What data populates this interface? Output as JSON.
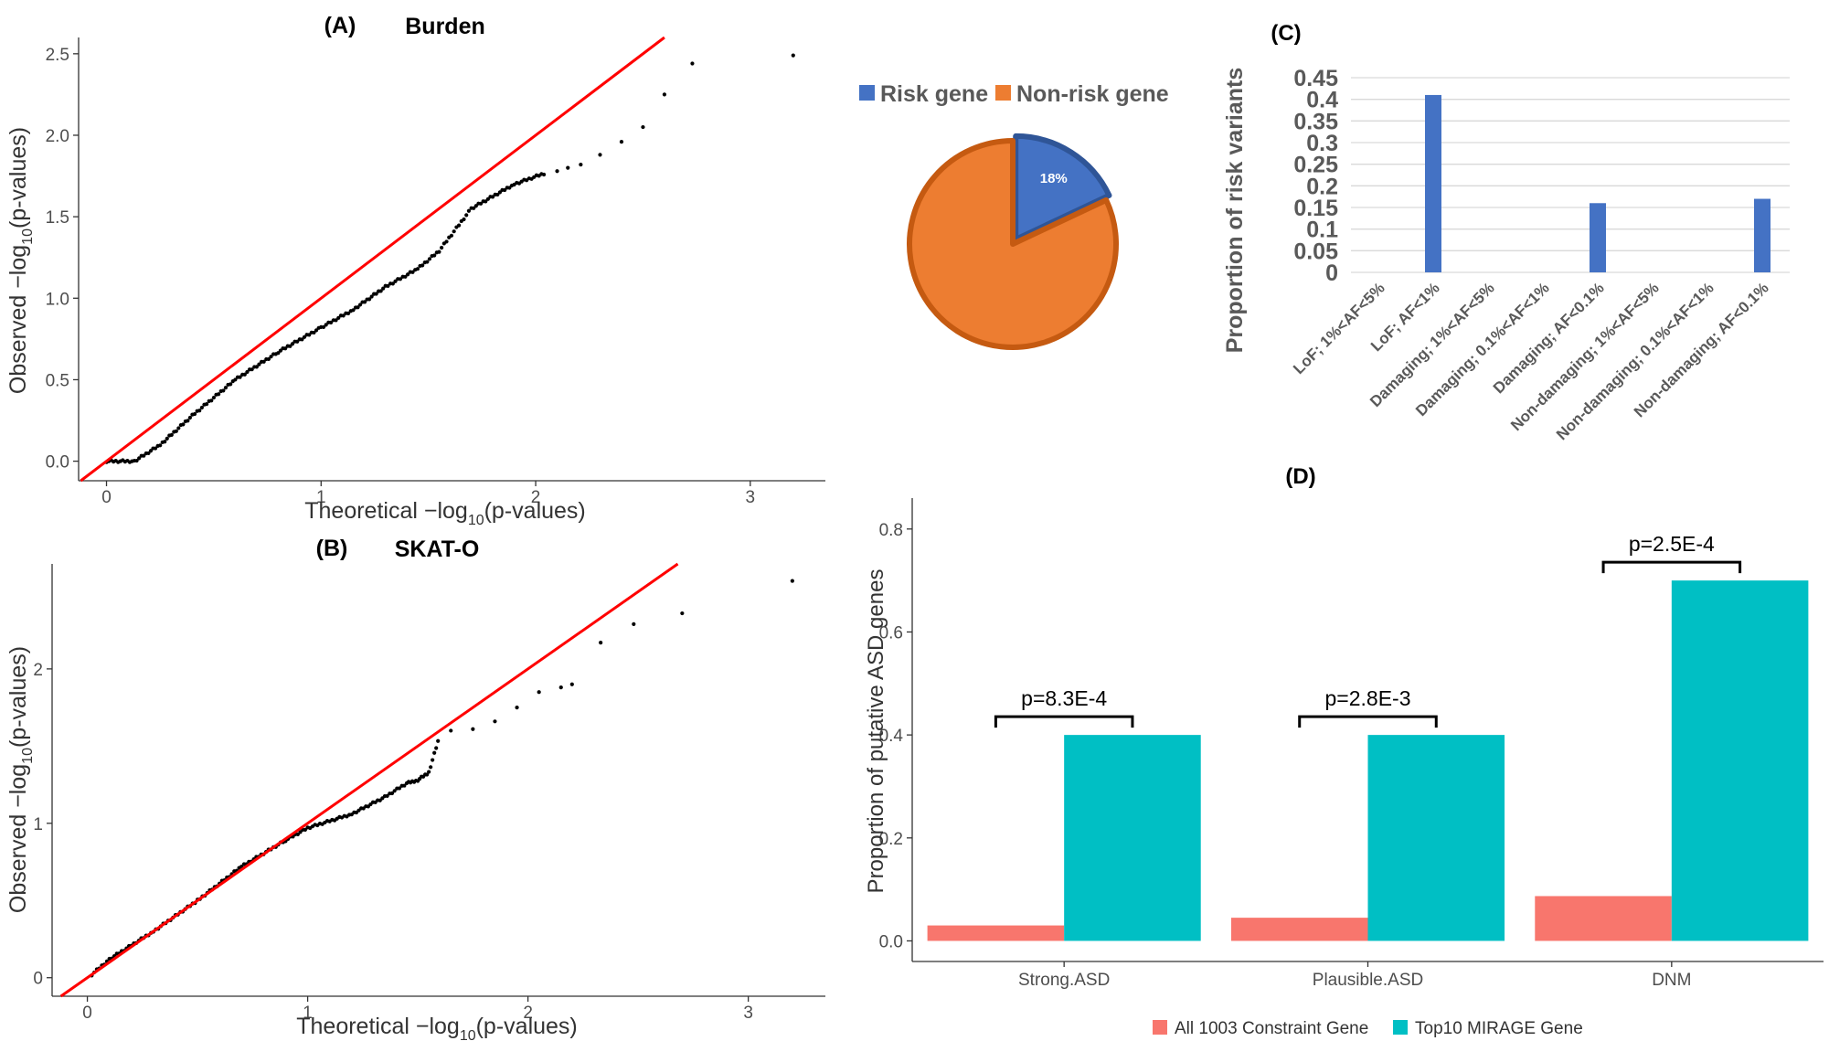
{
  "chart_data": [
    {
      "type": "scatter",
      "panel_label": "(A)",
      "title": "Burden",
      "xlabel": "Theoretical −log",
      "xlabel_sub": "10",
      "xlabel_tail": "(p-values)",
      "ylabel": "Observed −log",
      "ylabel_sub": "10",
      "ylabel_tail": "(p-values)",
      "xlim": [
        -0.13,
        3.35
      ],
      "ylim": [
        -0.12,
        2.6
      ],
      "x_ticks": [
        0,
        1,
        2,
        3
      ],
      "x_tick_labels": [
        "0",
        "1",
        "2",
        "3"
      ],
      "y_ticks": [
        0,
        0.5,
        1,
        1.5,
        2,
        2.5
      ],
      "y_tick_labels": [
        "0.0",
        "0.5",
        "1.0",
        "1.5",
        "2.0",
        "2.5"
      ],
      "reference_line": "y = x",
      "curve": [
        [
          0,
          0
        ],
        [
          0.13,
          0
        ],
        [
          0.25,
          0.1
        ],
        [
          0.4,
          0.28
        ],
        [
          0.6,
          0.5
        ],
        [
          0.8,
          0.67
        ],
        [
          1.0,
          0.82
        ],
        [
          1.15,
          0.93
        ],
        [
          1.3,
          1.07
        ],
        [
          1.45,
          1.18
        ],
        [
          1.55,
          1.29
        ],
        [
          1.7,
          1.55
        ],
        [
          1.9,
          1.7
        ],
        [
          2.05,
          1.77
        ]
      ],
      "points": [
        [
          2.1,
          1.78
        ],
        [
          2.15,
          1.8
        ],
        [
          2.21,
          1.82
        ],
        [
          2.3,
          1.88
        ],
        [
          2.4,
          1.96
        ],
        [
          2.5,
          2.05
        ],
        [
          2.6,
          2.25
        ],
        [
          2.73,
          2.44
        ],
        [
          3.2,
          2.49
        ]
      ]
    },
    {
      "type": "pie",
      "legend": [
        "Risk gene",
        "Non-risk gene"
      ],
      "slices": [
        {
          "name": "Risk gene",
          "value": 18,
          "label": "18%",
          "color": "#4472C4"
        },
        {
          "name": "Non-risk gene",
          "value": 82,
          "label": "82%",
          "color": "#ED7D31"
        }
      ]
    },
    {
      "type": "bar",
      "panel_label": "(C)",
      "ylabel": "Proportion of risk variants",
      "categories": [
        "LoF; 1%<AF<5%",
        "LoF; AF<1%",
        "Damaging; 1%<AF<5%",
        "Damaging; 0.1%<AF<1%",
        "Damaging; AF<0.1%",
        "Non-damaging; 1%<AF<5%",
        "Non-damaging; 0.1%<AF<1%",
        "Non-damaging; AF<0.1%"
      ],
      "values": [
        0,
        0.41,
        0,
        0,
        0.16,
        0,
        0,
        0.17
      ],
      "ylim": [
        0,
        0.45
      ],
      "y_ticks": [
        0,
        0.05,
        0.1,
        0.15,
        0.2,
        0.25,
        0.3,
        0.35,
        0.4,
        0.45
      ],
      "y_tick_labels": [
        "0",
        "0.05",
        "0.1",
        "0.15",
        "0.2",
        "0.25",
        "0.3",
        "0.35",
        "0.4",
        "0.45"
      ],
      "color": "#4472C4",
      "grid": true
    },
    {
      "type": "scatter",
      "panel_label": "(B)",
      "title": "SKAT-O",
      "xlabel": "Theoretical −log",
      "xlabel_sub": "10",
      "xlabel_tail": "(p-values)",
      "ylabel": "Observed −log",
      "ylabel_sub": "10",
      "ylabel_tail": "(p-values)",
      "xlim": [
        -0.16,
        3.35
      ],
      "ylim": [
        -0.12,
        2.68
      ],
      "x_ticks": [
        0,
        1,
        2,
        3
      ],
      "x_tick_labels": [
        "0",
        "1",
        "2",
        "3"
      ],
      "y_ticks": [
        0,
        1,
        2
      ],
      "y_tick_labels": [
        "0",
        "1",
        "2"
      ],
      "reference_line": "y = x",
      "curve": [
        [
          0.02,
          0.02
        ],
        [
          0.1,
          0.12
        ],
        [
          0.3,
          0.3
        ],
        [
          0.5,
          0.5
        ],
        [
          0.7,
          0.72
        ],
        [
          0.9,
          0.89
        ],
        [
          1.0,
          0.97
        ],
        [
          1.2,
          1.06
        ],
        [
          1.35,
          1.17
        ],
        [
          1.45,
          1.26
        ],
        [
          1.5,
          1.28
        ],
        [
          1.55,
          1.33
        ],
        [
          1.6,
          1.57
        ]
      ],
      "points": [
        [
          1.65,
          1.6
        ],
        [
          1.75,
          1.61
        ],
        [
          1.85,
          1.66
        ],
        [
          1.95,
          1.75
        ],
        [
          2.05,
          1.85
        ],
        [
          2.15,
          1.88
        ],
        [
          2.2,
          1.9
        ],
        [
          2.33,
          2.17
        ],
        [
          2.48,
          2.29
        ],
        [
          2.7,
          2.36
        ],
        [
          3.2,
          2.57
        ]
      ]
    },
    {
      "type": "bar",
      "panel_label": "(D)",
      "ylabel": "Proportion of putative ASD genes",
      "categories": [
        "Strong.ASD",
        "Plausible.ASD",
        "DNM"
      ],
      "series": [
        {
          "name": "All 1003 Constraint Gene",
          "values": [
            0.03,
            0.045,
            0.087
          ],
          "color": "#F8766D"
        },
        {
          "name": "Top10 MIRAGE Gene",
          "values": [
            0.4,
            0.4,
            0.7
          ],
          "color": "#00BFC4"
        }
      ],
      "ylim": [
        -0.04,
        0.86
      ],
      "y_ticks": [
        0,
        0.2,
        0.4,
        0.6,
        0.8
      ],
      "y_tick_labels": [
        "0.0",
        "0.2",
        "0.4",
        "0.6",
        "0.8"
      ],
      "annotations": [
        "p=8.3E-4",
        "p=2.8E-3",
        "p=2.5E-4"
      ],
      "legend_position": "bottom"
    }
  ]
}
